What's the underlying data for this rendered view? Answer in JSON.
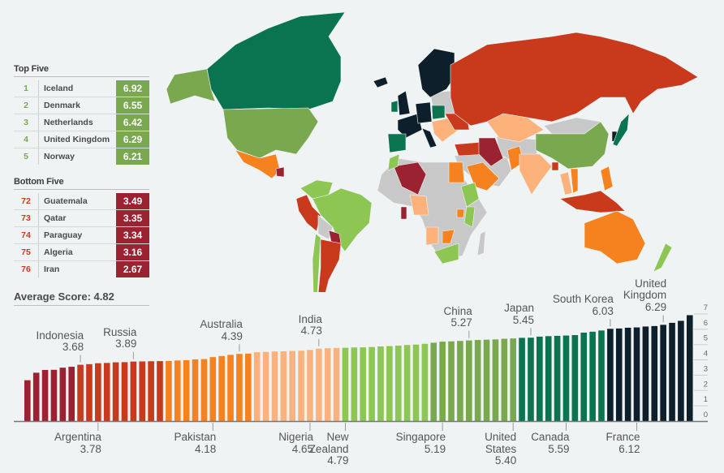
{
  "palette": {
    "dark_red": "#9b2230",
    "red": "#c9391c",
    "orange": "#f5821f",
    "light_orange": "#fcb27a",
    "light_green": "#8dc653",
    "green": "#7aa84f",
    "teal": "#0a7350",
    "navy": "#0d1f2a",
    "no_data": "#c8c8c8"
  },
  "top_five": {
    "title": "Top Five",
    "rows": [
      {
        "rank": "1",
        "country": "Iceland",
        "score": "6.92"
      },
      {
        "rank": "2",
        "country": "Denmark",
        "score": "6.55"
      },
      {
        "rank": "3",
        "country": "Netherlands",
        "score": "6.42"
      },
      {
        "rank": "4",
        "country": "United Kingdom",
        "score": "6.29"
      },
      {
        "rank": "5",
        "country": "Norway",
        "score": "6.21"
      }
    ]
  },
  "bottom_five": {
    "title": "Bottom Five",
    "rows": [
      {
        "rank": "72",
        "country": "Guatemala",
        "score": "3.49"
      },
      {
        "rank": "73",
        "country": "Qatar",
        "score": "3.35"
      },
      {
        "rank": "74",
        "country": "Paraguay",
        "score": "3.34"
      },
      {
        "rank": "75",
        "country": "Algeria",
        "score": "3.16"
      },
      {
        "rank": "76",
        "country": "Iran",
        "score": "2.67"
      }
    ]
  },
  "average_label": "Average Score: 4.82",
  "chart_data": {
    "type": "bar",
    "ylim": [
      0,
      7
    ],
    "yticks": [
      0,
      1,
      2,
      3,
      4,
      5,
      6,
      7
    ],
    "grid": true,
    "values": [
      2.67,
      3.16,
      3.34,
      3.35,
      3.49,
      3.55,
      3.68,
      3.72,
      3.78,
      3.8,
      3.84,
      3.85,
      3.89,
      3.9,
      3.91,
      3.92,
      3.93,
      3.96,
      3.98,
      4.03,
      4.05,
      4.18,
      4.25,
      4.33,
      4.39,
      4.41,
      4.5,
      4.52,
      4.55,
      4.56,
      4.58,
      4.6,
      4.65,
      4.73,
      4.76,
      4.78,
      4.79,
      4.81,
      4.82,
      4.84,
      4.88,
      4.9,
      4.93,
      4.97,
      5.0,
      5.05,
      5.12,
      5.19,
      5.21,
      5.24,
      5.27,
      5.3,
      5.32,
      5.34,
      5.38,
      5.4,
      5.44,
      5.45,
      5.52,
      5.55,
      5.57,
      5.59,
      5.62,
      5.78,
      5.84,
      5.92,
      6.03,
      6.05,
      6.1,
      6.12,
      6.18,
      6.21,
      6.29,
      6.42,
      6.55,
      6.92
    ],
    "color_groups": [
      {
        "color": "#9b2230",
        "count": 6
      },
      {
        "color": "#c9391c",
        "count": 10
      },
      {
        "color": "#f5821f",
        "count": 10
      },
      {
        "color": "#fcb27a",
        "count": 10
      },
      {
        "color": "#8dc653",
        "count": 10
      },
      {
        "color": "#7aa84f",
        "count": 10
      },
      {
        "color": "#0a7350",
        "count": 10
      },
      {
        "color": "#0d1f2a",
        "count": 10
      }
    ],
    "annotations": [
      {
        "bar": 7,
        "label": "Indonesia\n3.68",
        "side": "above"
      },
      {
        "bar": 9,
        "label": "Argentina\n3.78",
        "side": "below"
      },
      {
        "bar": 13,
        "label": "Russia\n3.89",
        "side": "above"
      },
      {
        "bar": 22,
        "label": "Pakistan\n4.18",
        "side": "below"
      },
      {
        "bar": 25,
        "label": "Australia\n4.39",
        "side": "above"
      },
      {
        "bar": 33,
        "label": "Nigeria\n4.65",
        "side": "below"
      },
      {
        "bar": 34,
        "label": "India\n4.73",
        "side": "above"
      },
      {
        "bar": 37,
        "label": "New\nZealand\n4.79",
        "side": "below"
      },
      {
        "bar": 48,
        "label": "Singapore\n5.19",
        "side": "below"
      },
      {
        "bar": 51,
        "label": "China\n5.27",
        "side": "above"
      },
      {
        "bar": 56,
        "label": "United\nStates\n5.40",
        "side": "below"
      },
      {
        "bar": 58,
        "label": "Japan\n5.45",
        "side": "above"
      },
      {
        "bar": 62,
        "label": "Canada\n5.59",
        "side": "below"
      },
      {
        "bar": 67,
        "label": "South Korea\n6.03",
        "side": "above"
      },
      {
        "bar": 70,
        "label": "France\n6.12",
        "side": "below"
      },
      {
        "bar": 73,
        "label": "United\nKingdom\n6.29",
        "side": "above"
      }
    ]
  }
}
